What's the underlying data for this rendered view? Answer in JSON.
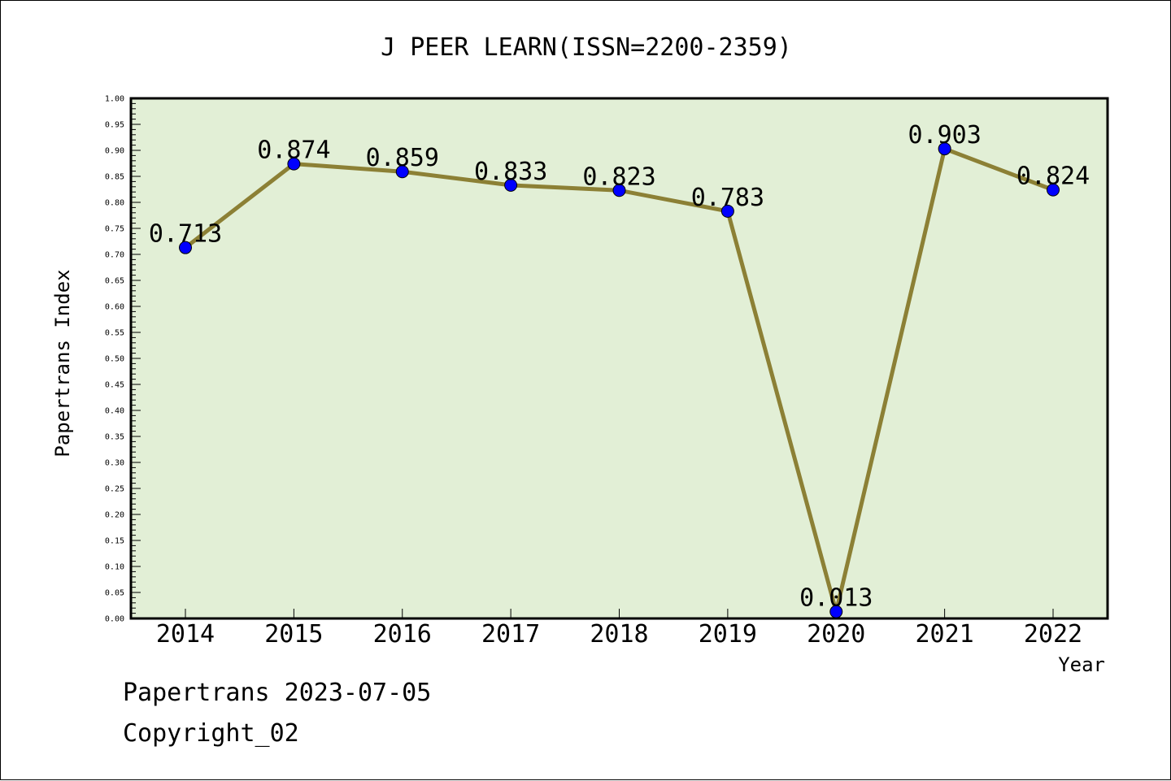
{
  "chart_data": {
    "type": "line",
    "title": "J PEER LEARN(ISSN=2200-2359)",
    "xlabel": "Year",
    "ylabel": "Papertrans Index",
    "categories": [
      "2014",
      "2015",
      "2016",
      "2017",
      "2018",
      "2019",
      "2020",
      "2021",
      "2022"
    ],
    "values": [
      0.713,
      0.874,
      0.859,
      0.833,
      0.823,
      0.783,
      0.013,
      0.903,
      0.824
    ],
    "data_labels": [
      "0.713",
      "0.874",
      "0.859",
      "0.833",
      "0.823",
      "0.783",
      "0.013",
      "0.903",
      "0.824"
    ],
    "ylim": [
      0,
      1
    ],
    "yticks": [
      "0.00",
      "0.05",
      "0.10",
      "0.15",
      "0.20",
      "0.25",
      "0.30",
      "0.35",
      "0.40",
      "0.45",
      "0.50",
      "0.55",
      "0.60",
      "0.65",
      "0.70",
      "0.75",
      "0.80",
      "0.85",
      "0.90",
      "0.95",
      "1.00"
    ],
    "grid": false,
    "colors": {
      "plot_background": "#e2efd6",
      "line": "#8c8035",
      "marker": "#0000ff"
    }
  },
  "footer": {
    "date_text": "Papertrans 2023-07-05",
    "copyright_text": "Copyright_02"
  }
}
